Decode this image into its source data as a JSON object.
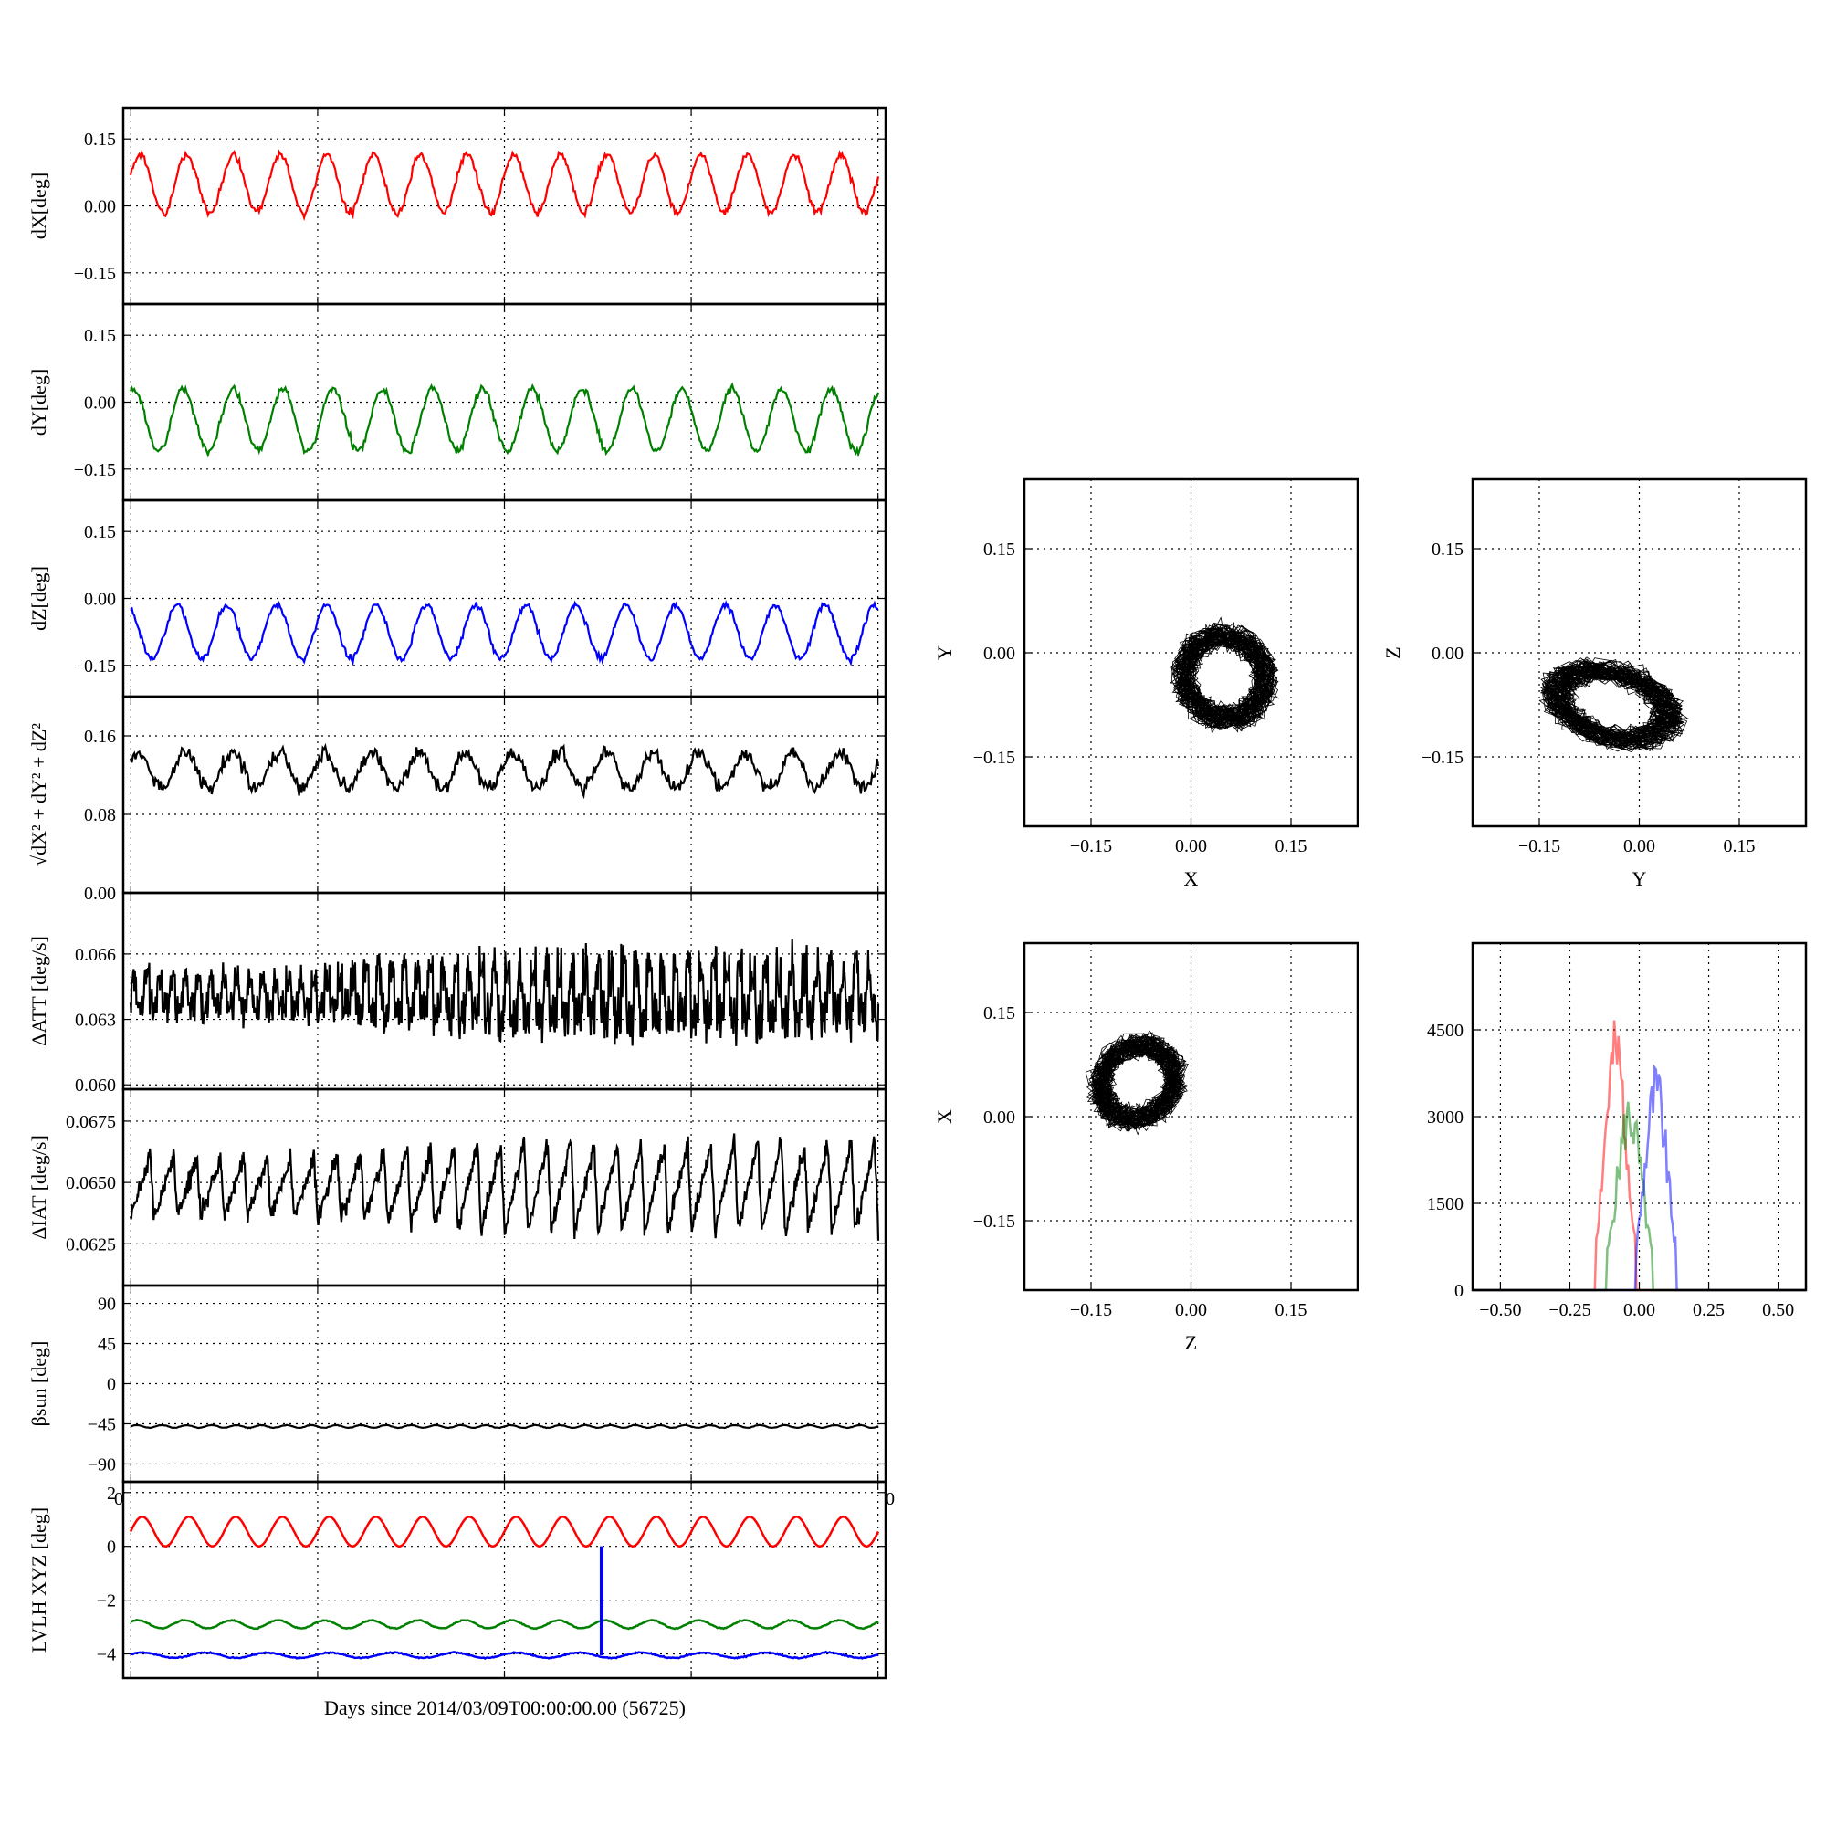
{
  "figure": {
    "xlabel": "Days since 2014/03/09T00:00:00.00 (56725)",
    "stray_tick_left": "0",
    "stray_tick_right": "0"
  },
  "colors": {
    "red": "#ff0000",
    "green": "#008000",
    "blue": "#0000ff",
    "black": "#000000"
  },
  "chart_data": [
    {
      "id": "dx",
      "type": "line",
      "ylabel": "dX[deg]",
      "ylim": [
        -0.22,
        0.22
      ],
      "yticks": [
        0.15,
        0.0,
        -0.15
      ],
      "ytick_labels": [
        "0.15",
        "0.00",
        "−0.15"
      ],
      "grid": true,
      "series": [
        {
          "color": "red",
          "mean": 0.05,
          "amp": 0.065,
          "periods": 16,
          "noise": 0.008,
          "phase": 0.3
        }
      ]
    },
    {
      "id": "dy",
      "type": "line",
      "ylabel": "dY[deg]",
      "ylim": [
        -0.22,
        0.22
      ],
      "yticks": [
        0.15,
        0.0,
        -0.15
      ],
      "ytick_labels": [
        "0.15",
        "0.00",
        "−0.15"
      ],
      "grid": true,
      "series": [
        {
          "color": "green",
          "mean": -0.04,
          "amp": 0.07,
          "periods": 15,
          "noise": 0.008,
          "phase": 1.2
        }
      ]
    },
    {
      "id": "dz",
      "type": "line",
      "ylabel": "dZ[deg]",
      "ylim": [
        -0.22,
        0.22
      ],
      "yticks": [
        0.15,
        0.0,
        -0.15
      ],
      "ytick_labels": [
        "0.15",
        "0.00",
        "−0.15"
      ],
      "grid": true,
      "series": [
        {
          "color": "blue",
          "mean": -0.075,
          "amp": 0.06,
          "periods": 15,
          "noise": 0.007,
          "phase": 2.0
        }
      ]
    },
    {
      "id": "mag",
      "type": "line",
      "ylabel": "√dX² + dY² + dZ²",
      "ylim": [
        0.0,
        0.2
      ],
      "yticks": [
        0.16,
        0.08,
        0.0
      ],
      "ytick_labels": [
        "0.16",
        "0.08",
        "0.00"
      ],
      "grid": true,
      "series": [
        {
          "color": "black",
          "mean": 0.125,
          "amp": 0.018,
          "periods": 16,
          "noise": 0.008,
          "phase": 0.5
        }
      ]
    },
    {
      "id": "datt",
      "type": "line",
      "ylabel": "ΔATT [deg/s]",
      "ylim": [
        0.0598,
        0.0688
      ],
      "yticks": [
        0.066,
        0.063,
        0.06
      ],
      "ytick_labels": [
        "0.066",
        "0.063",
        "0.060"
      ],
      "grid": true,
      "series": [
        {
          "color": "black",
          "mean": 0.0642,
          "amp": 0.0011,
          "amp_end": 0.0019,
          "periods": 58,
          "noise": 0.0006,
          "phase": 0.0
        }
      ]
    },
    {
      "id": "diat",
      "type": "line",
      "ylabel": "ΔIAT [deg/s]",
      "ylim": [
        0.0608,
        0.0688
      ],
      "yticks": [
        0.0675,
        0.065,
        0.0625
      ],
      "ytick_labels": [
        "0.0675",
        "0.0650",
        "0.0625"
      ],
      "grid": true,
      "series": [
        {
          "color": "black",
          "mean": 0.0648,
          "amp": 0.0012,
          "amp_end": 0.0018,
          "periods": 32,
          "noise": 0.0004,
          "phase": 0.0,
          "sawtooth": true
        }
      ]
    },
    {
      "id": "beta",
      "type": "line",
      "ylabel": "βsun [deg]",
      "ylim": [
        -110,
        110
      ],
      "yticks": [
        90,
        45,
        0,
        -45,
        -90
      ],
      "ytick_labels": [
        "90",
        "45",
        "0",
        "−45",
        "−90"
      ],
      "grid": true,
      "series": [
        {
          "color": "black",
          "mean": -48,
          "amp": 1.5,
          "periods": 30,
          "noise": 0.3,
          "phase": 0.0
        }
      ]
    },
    {
      "id": "lvlh",
      "type": "line",
      "ylabel": "LVLH XYZ [deg]",
      "ylim": [
        -4.9,
        2.4
      ],
      "yticks": [
        2,
        0,
        -2,
        -4
      ],
      "ytick_labels": [
        "2",
        "0",
        "−2",
        "−4"
      ],
      "grid": true,
      "series": [
        {
          "color": "red",
          "mean": 0.55,
          "amp": 0.55,
          "periods": 16,
          "noise": 0.0,
          "phase": 0.0
        },
        {
          "color": "green",
          "mean": -2.9,
          "amp": 0.15,
          "periods": 16,
          "noise": 0.02,
          "phase": 0.6
        },
        {
          "color": "blue",
          "mean": -4.05,
          "amp": 0.1,
          "periods": 12,
          "noise": 0.02,
          "phase": 0.3,
          "spike_at": 0.63,
          "spike_to": 0.0
        }
      ]
    },
    {
      "id": "xy",
      "type": "scatter",
      "xlabel": "X",
      "ylabel": "Y",
      "xlim": [
        -0.25,
        0.25
      ],
      "ylim": [
        -0.25,
        0.25
      ],
      "xticks": [
        -0.15,
        0.0,
        0.15
      ],
      "xtick_labels": [
        "−0.15",
        "0.00",
        "0.15"
      ],
      "yticks": [
        0.15,
        0.0,
        -0.15
      ],
      "ytick_labels": [
        "0.15",
        "0.00",
        "−0.15"
      ],
      "cloud": {
        "cx": 0.05,
        "cy": -0.035,
        "rx": 0.075,
        "ry": 0.08,
        "tilt": 0.9,
        "seed": 3
      }
    },
    {
      "id": "yz",
      "type": "scatter",
      "xlabel": "Y",
      "ylabel": "Z",
      "xlim": [
        -0.25,
        0.25
      ],
      "ylim": [
        -0.25,
        0.25
      ],
      "xticks": [
        -0.15,
        0.0,
        0.15
      ],
      "xtick_labels": [
        "−0.15",
        "0.00",
        "0.15"
      ],
      "yticks": [
        0.15,
        0.0,
        -0.15
      ],
      "ytick_labels": [
        "0.15",
        "0.00",
        "−0.15"
      ],
      "cloud": {
        "cx": -0.04,
        "cy": -0.075,
        "rx": 0.11,
        "ry": 0.06,
        "tilt": -0.25,
        "seed": 7
      }
    },
    {
      "id": "zx",
      "type": "scatter",
      "xlabel": "Z",
      "ylabel": "X",
      "xlim": [
        -0.25,
        0.25
      ],
      "ylim": [
        -0.25,
        0.25
      ],
      "xticks": [
        -0.15,
        0.0,
        0.15
      ],
      "xtick_labels": [
        "−0.15",
        "0.00",
        "0.15"
      ],
      "yticks": [
        0.15,
        0.0,
        -0.15
      ],
      "ytick_labels": [
        "0.15",
        "0.00",
        "−0.15"
      ],
      "cloud": {
        "cx": -0.08,
        "cy": 0.05,
        "rx": 0.075,
        "ry": 0.065,
        "tilt": 0.6,
        "seed": 11
      }
    },
    {
      "id": "hist",
      "type": "area",
      "xlim": [
        -0.6,
        0.6
      ],
      "ylim": [
        0,
        6000
      ],
      "xticks": [
        -0.5,
        -0.25,
        0.0,
        0.25,
        0.5
      ],
      "xtick_labels": [
        "−0.50",
        "−0.25",
        "0.00",
        "0.25",
        "0.50"
      ],
      "yticks": [
        4500,
        3000,
        1500,
        0
      ],
      "ytick_labels": [
        "4500",
        "3000",
        "1500",
        "0"
      ],
      "series": [
        {
          "color": "red",
          "center": -0.085,
          "width": 0.045,
          "peak": 4700,
          "seed": 2
        },
        {
          "color": "green",
          "center": -0.035,
          "width": 0.05,
          "peak": 3500,
          "seed": 5
        },
        {
          "color": "blue",
          "center": 0.06,
          "width": 0.045,
          "peak": 4000,
          "seed": 9
        }
      ]
    }
  ]
}
